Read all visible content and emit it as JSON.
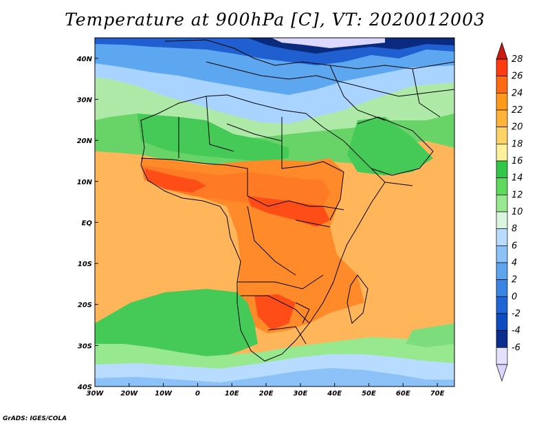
{
  "title": "Temperature at 900hPa [C], VT: 2020012003",
  "credit": "GrADS: IGES/COLA",
  "map": {
    "variable": "Temperature at 900hPa",
    "units": "C",
    "valid_time": "2020012003",
    "lon_range": [
      -30,
      75
    ],
    "lat_range": [
      -40,
      45
    ],
    "lon_ticks": [
      "30W",
      "20W",
      "10W",
      "0",
      "10E",
      "20E",
      "30E",
      "40E",
      "50E",
      "60E",
      "70E"
    ],
    "lat_ticks": [
      "40N",
      "30N",
      "20N",
      "10N",
      "EQ",
      "10S",
      "20S",
      "30S",
      "40S"
    ]
  },
  "legend": {
    "levels": [
      28,
      26,
      24,
      22,
      20,
      18,
      16,
      14,
      12,
      10,
      8,
      6,
      4,
      2,
      0,
      -2,
      -4,
      -6
    ],
    "colors": [
      "#ff3b12",
      "#ff6a12",
      "#ff9a1a",
      "#ffb338",
      "#ffd266",
      "#fff09c",
      "#33c64a",
      "#5fd85f",
      "#98e88f",
      "#d9f7e0",
      "#b7dcff",
      "#8cc2f7",
      "#5fa4ef",
      "#3a84e3",
      "#1f66d4",
      "#0f4cc0",
      "#082f8d",
      "#e6e0ff"
    ],
    "top_arrow_color": "#c81a0f",
    "bottom_arrow_color": "#d8d6ff"
  },
  "palette": {
    "ocean_warm": "#ffb65a",
    "ocean_hot": "#ff9a35",
    "land_hot": "#ff7a25",
    "land_hotspot": "#ff4d18",
    "cool_green": "#45c957",
    "mid_green": "#7ddc7b",
    "pale_green": "#c7f2c8",
    "cyan_blue": "#a9d4ff",
    "blue": "#5ca7ef",
    "deep_blue": "#1f5fcf",
    "navy": "#0a2a7d",
    "lavender": "#dcd8ff"
  }
}
